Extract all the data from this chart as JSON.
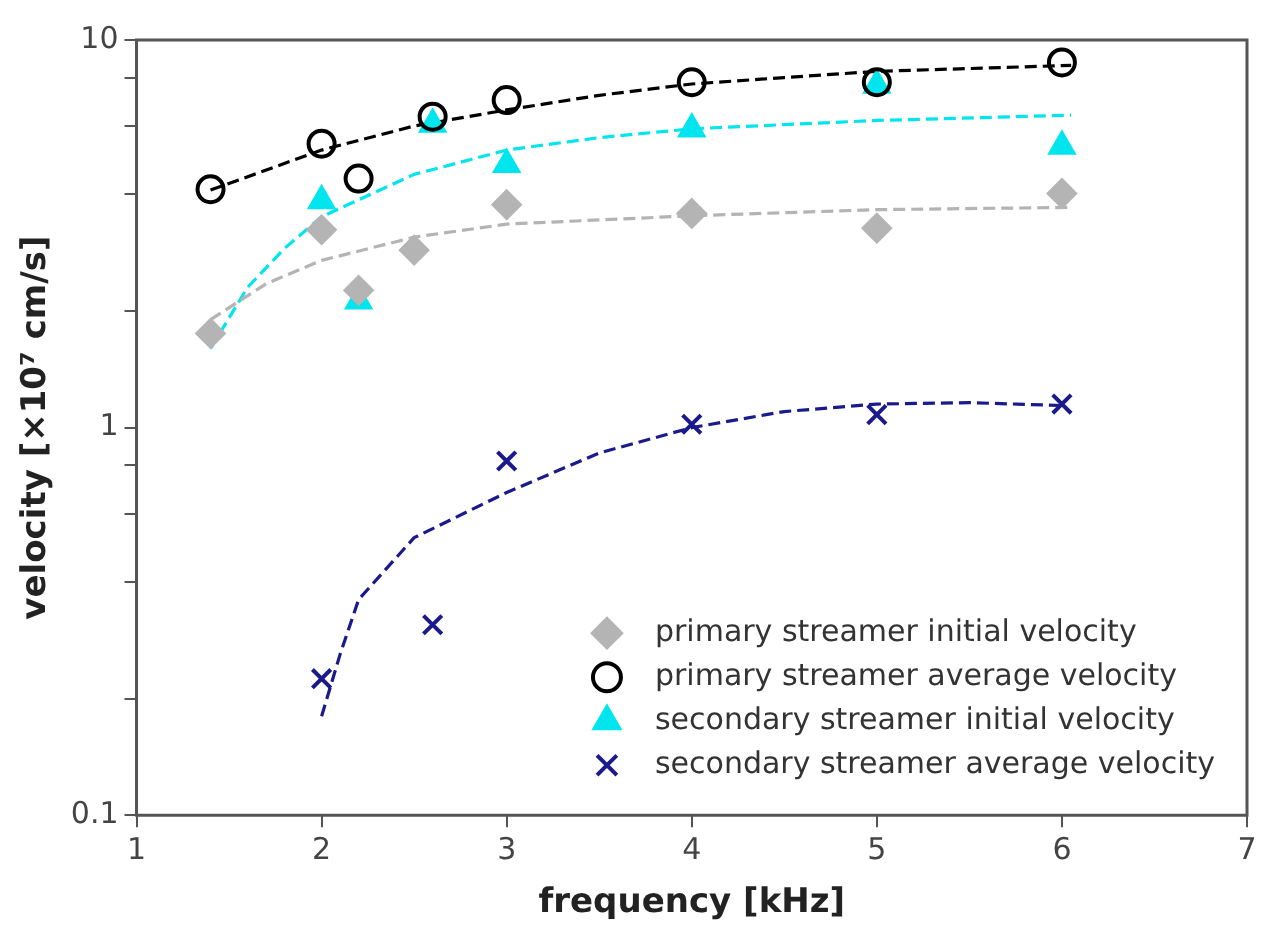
{
  "chart_data": {
    "type": "scatter",
    "xlabel": "frequency [kHz]",
    "ylabel": "velocity [×10⁷ cm/s]",
    "xlim": [
      1,
      7
    ],
    "xticks": [
      1,
      2,
      3,
      4,
      5,
      6,
      7
    ],
    "ylim": [
      0.1,
      10
    ],
    "yticks": [
      0.1,
      {
        "value": 0.2,
        "label": null
      },
      {
        "value": 0.4,
        "label": null
      },
      {
        "value": 0.6,
        "label": null
      },
      {
        "value": 0.8,
        "label": null
      },
      1,
      {
        "value": 2,
        "label": null
      },
      {
        "value": 4,
        "label": null
      },
      {
        "value": 6,
        "label": null
      },
      {
        "value": 8,
        "label": null
      },
      10
    ],
    "log": "y",
    "grid": false,
    "legend": "bottom right",
    "series": [
      {
        "name": "primary streamer initial velocity",
        "marker": "diamond",
        "color": "#b4b4b4",
        "x": [
          1.4,
          2,
          2.2,
          2.5,
          3,
          4,
          5,
          6
        ],
        "values": [
          1.75,
          3.24,
          2.26,
          2.87,
          3.76,
          3.57,
          3.27,
          4.02
        ]
      },
      {
        "name": "primary streamer average velocity",
        "marker": "circle",
        "color": "#000000",
        "x": [
          1.4,
          2,
          2.2,
          2.6,
          3,
          4,
          5,
          6
        ],
        "values": [
          4.12,
          5.4,
          4.39,
          6.34,
          7.0,
          7.78,
          7.78,
          8.75
        ]
      },
      {
        "name": "secondary streamer initial velocity",
        "marker": "triangle",
        "color": "#00e5ee",
        "x": [
          2,
          2.2,
          2.6,
          3,
          4,
          5,
          6
        ],
        "values": [
          3.85,
          2.12,
          6.06,
          4.77,
          5.89,
          7.64,
          5.32
        ]
      },
      {
        "name": "secondary streamer average velocity",
        "marker": "cross",
        "color": "#1a1a8c",
        "x": [
          2,
          2.6,
          3,
          4,
          5,
          6
        ],
        "values": [
          0.225,
          0.31,
          0.82,
          1.02,
          1.08,
          1.15
        ]
      },
      {
        "type": "line",
        "marker": "none",
        "line_style": "dashed",
        "color": "#b4b4b4",
        "x": [
          1.4,
          1.7,
          2,
          2.5,
          3,
          4,
          5,
          6.05
        ],
        "values": [
          1.9,
          2.35,
          2.7,
          3.1,
          3.35,
          3.52,
          3.65,
          3.7
        ]
      },
      {
        "type": "line",
        "marker": "none",
        "line_style": "dashed",
        "color": "#000000",
        "x": [
          1.4,
          2,
          2.5,
          3,
          3.5,
          4,
          4.5,
          5,
          6.05
        ],
        "values": [
          4.1,
          5.2,
          6.0,
          6.6,
          7.2,
          7.7,
          8.0,
          8.3,
          8.6
        ]
      },
      {
        "type": "line",
        "marker": "none",
        "line_style": "dashed",
        "color": "#00e5ee",
        "x": [
          1.4,
          1.6,
          1.8,
          2,
          2.5,
          3,
          3.5,
          4,
          5,
          6.05
        ],
        "values": [
          1.6,
          2.3,
          2.9,
          3.5,
          4.5,
          5.2,
          5.6,
          5.9,
          6.2,
          6.4
        ]
      },
      {
        "type": "line",
        "marker": "none",
        "line_style": "dashed",
        "color": "#1a1a8c",
        "x": [
          2,
          2.1,
          2.2,
          2.5,
          3,
          3.5,
          4,
          4.5,
          5,
          5.5,
          6
        ],
        "values": [
          0.18,
          0.26,
          0.36,
          0.52,
          0.68,
          0.86,
          1.0,
          1.1,
          1.15,
          1.16,
          1.14
        ]
      }
    ]
  }
}
